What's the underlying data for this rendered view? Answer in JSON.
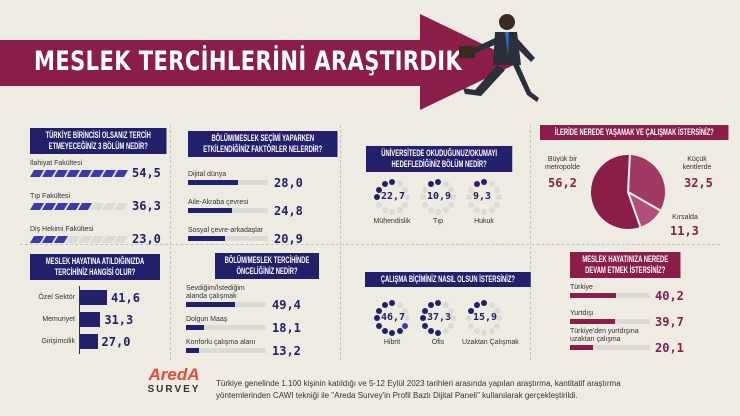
{
  "header": {
    "title": "MESLEK TERCİHLERİNİ ARAŞTIRDIK"
  },
  "colors": {
    "navy": "#23206b",
    "blue": "#3b3aa8",
    "crimson": "#8a1e48",
    "pink": "#b0507a",
    "background": "#eeebe3"
  },
  "chart_data": [
    {
      "type": "bar",
      "title": "TÜRKİYE BİRİNCİSİ OLSANIZ TERCİH ETMEYECEĞİNİZ 3 BÖLÜM NEDİR?",
      "categories": [
        "İlahiyat Fakültesi",
        "Tıp Fakültesi",
        "Diş Hekimi Fakültesi"
      ],
      "values": [
        54.5,
        36.3,
        23.0
      ],
      "labels": [
        "54,5",
        "36,3",
        "23,0"
      ],
      "icon": "graduation-cap-icon"
    },
    {
      "type": "bar",
      "title": "BÖLÜM/MESLEK SEÇİMİ YAPARKEN ETKİLENDİĞİNİZ FAKTÖRLER NELERDİR?",
      "categories": [
        "Dijital dünya",
        "Aile-Akraba çevresi",
        "Sosyal çevre-arkadaşlar"
      ],
      "values": [
        28.0,
        24.8,
        20.9
      ],
      "labels": [
        "28,0",
        "24,8",
        "20,9"
      ]
    },
    {
      "type": "pie",
      "title": "ÜNİVERSİTEDE OKUDUĞUNUZ/OKUMAYI HEDEFLEDİĞİNİZ BÖLÜM NEDİR?",
      "categories": [
        "Mühendislik",
        "Tıp",
        "Hukuk"
      ],
      "values": [
        22.7,
        10.9,
        9.3
      ],
      "labels": [
        "22,7",
        "10,9",
        "9,3"
      ]
    },
    {
      "type": "pie",
      "title": "İLERİDE NEREDE YAŞAMAK VE ÇALIŞMAK İSTERSİNİZ?",
      "categories": [
        "Büyük bir metropolde",
        "Küçük kentlerde",
        "Kırsalda"
      ],
      "values": [
        56.2,
        32.5,
        11.3
      ],
      "labels": [
        "56,2",
        "32,5",
        "11,3"
      ]
    },
    {
      "type": "bar",
      "title": "MESLEK HAYATINA ATILDIĞINIZDA TERCİHİNİZ HANGİSİ OLUR?",
      "categories": [
        "Özel Sektör",
        "Memuriyet",
        "Girişimcilik"
      ],
      "values": [
        41.6,
        31.3,
        27.0
      ],
      "labels": [
        "41,6",
        "31,3",
        "27,0"
      ]
    },
    {
      "type": "bar",
      "title": "BÖLÜM/MESLEK TERCİHİNDE ÖNCELİĞİNİZ NEDİR?",
      "categories": [
        "Sevdiğim/İstediğim alanda çalışmak",
        "Dolgun Maaş",
        "Konforlu çalışma alanı"
      ],
      "values": [
        49.4,
        18.1,
        13.2
      ],
      "labels": [
        "49,4",
        "18,1",
        "13,2"
      ]
    },
    {
      "type": "pie",
      "title": "ÇALIŞMA BİÇİMİNİZ NASIL OLSUN İSTERSİNİZ?",
      "categories": [
        "Hibrit",
        "Ofis",
        "Uzaktan Çalışmak"
      ],
      "values": [
        46.7,
        37.3,
        15.9
      ],
      "labels": [
        "46,7",
        "37,3",
        "15,9"
      ]
    },
    {
      "type": "bar",
      "title": "MESLEK HAYATINIZA NEREDE DEVAM ETMEK İSTERSİNİZ?",
      "categories": [
        "Türkiye",
        "Yurtdışı",
        "Türkiye'den yurtdışına uzaktan çalışma"
      ],
      "values": [
        40.2,
        39.7,
        20.1
      ],
      "labels": [
        "40,2",
        "39,7",
        "20,1"
      ]
    }
  ],
  "footer": {
    "logo_top": "AredA",
    "logo_bottom": "SURVEY",
    "note": "Türkiye genelinde 1.100 kişinin katıldığı ve 5-12 Eylül 2023 tarihleri arasında yapılan araştırma, kantitatif araştırma yöntemlerinden CAWI tekniği ile \"Areda Survey'in Profil Bazlı Dijital Paneli\" kullanılarak gerçekleştirildi."
  }
}
